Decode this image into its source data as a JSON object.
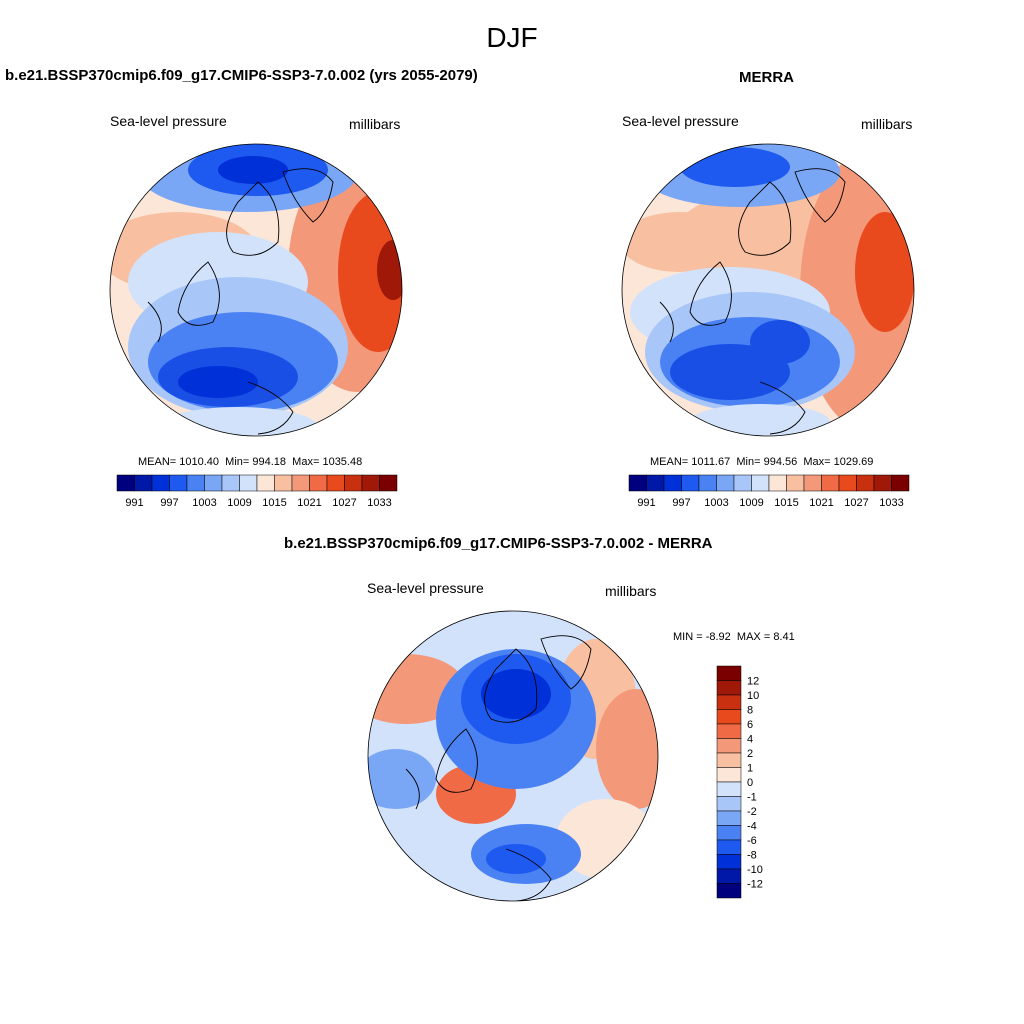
{
  "figure": {
    "title": "DJF"
  },
  "panels": {
    "model": {
      "title": "b.e21.BSSP370cmip6.f09_g17.CMIP6-SSP3-7.0.002 (yrs 2055-2079)",
      "left_label": "Sea-level pressure",
      "right_label": "millibars",
      "mean_label": "MEAN=",
      "mean": "1010.40",
      "min_label": "Min=",
      "min": "994.18",
      "max_label": "Max=",
      "max": "1035.48"
    },
    "obs": {
      "title": "MERRA",
      "left_label": "Sea-level pressure",
      "right_label": "millibars",
      "mean_label": "MEAN=",
      "mean": "1011.67",
      "min_label": "Min=",
      "min": "994.56",
      "max_label": "Max=",
      "max": "1029.69"
    },
    "diff": {
      "title": "b.e21.BSSP370cmip6.f09_g17.CMIP6-SSP3-7.0.002 - MERRA",
      "left_label": "Sea-level pressure",
      "right_label": "millibars",
      "min_label": "MIN =",
      "min": "-8.92",
      "max_label": "MAX =",
      "max": "8.41"
    }
  },
  "colorbars": {
    "pressure": {
      "colors": [
        "#00007f",
        "#0018a8",
        "#0030d8",
        "#1e5af0",
        "#4a82f4",
        "#7aa6f6",
        "#a8c6f8",
        "#d2e2fb",
        "#fbe6d8",
        "#f8c0a0",
        "#f4987a",
        "#f06a46",
        "#e84a1e",
        "#c83010",
        "#a01808",
        "#7a0000"
      ],
      "labels": [
        "991",
        "997",
        "1003",
        "1009",
        "1015",
        "1021",
        "1027",
        "1033"
      ]
    },
    "difference": {
      "colors": [
        "#00007f",
        "#0018a8",
        "#0030d8",
        "#1e5af0",
        "#4a82f4",
        "#7aa6f6",
        "#a8c6f8",
        "#d2e2fb",
        "#fbe6d8",
        "#f8c0a0",
        "#f4987a",
        "#f06a46",
        "#e84a1e",
        "#c83010",
        "#a01808",
        "#7a0000"
      ],
      "labels": [
        "12",
        "10",
        "8",
        "6",
        "4",
        "2",
        "1",
        "0",
        "-1",
        "-2",
        "-4",
        "-6",
        "-8",
        "-10",
        "-12"
      ]
    }
  },
  "map_colors": {
    "low_deep": "#1a4fe6",
    "low": "#4a82f4",
    "low_light": "#a8c6f8",
    "near": "#d2e2fb",
    "high_light": "#fbe6d8",
    "high": "#f4987a",
    "high_strong": "#e84a1e",
    "high_deep": "#a01808",
    "coast": "#000000"
  }
}
